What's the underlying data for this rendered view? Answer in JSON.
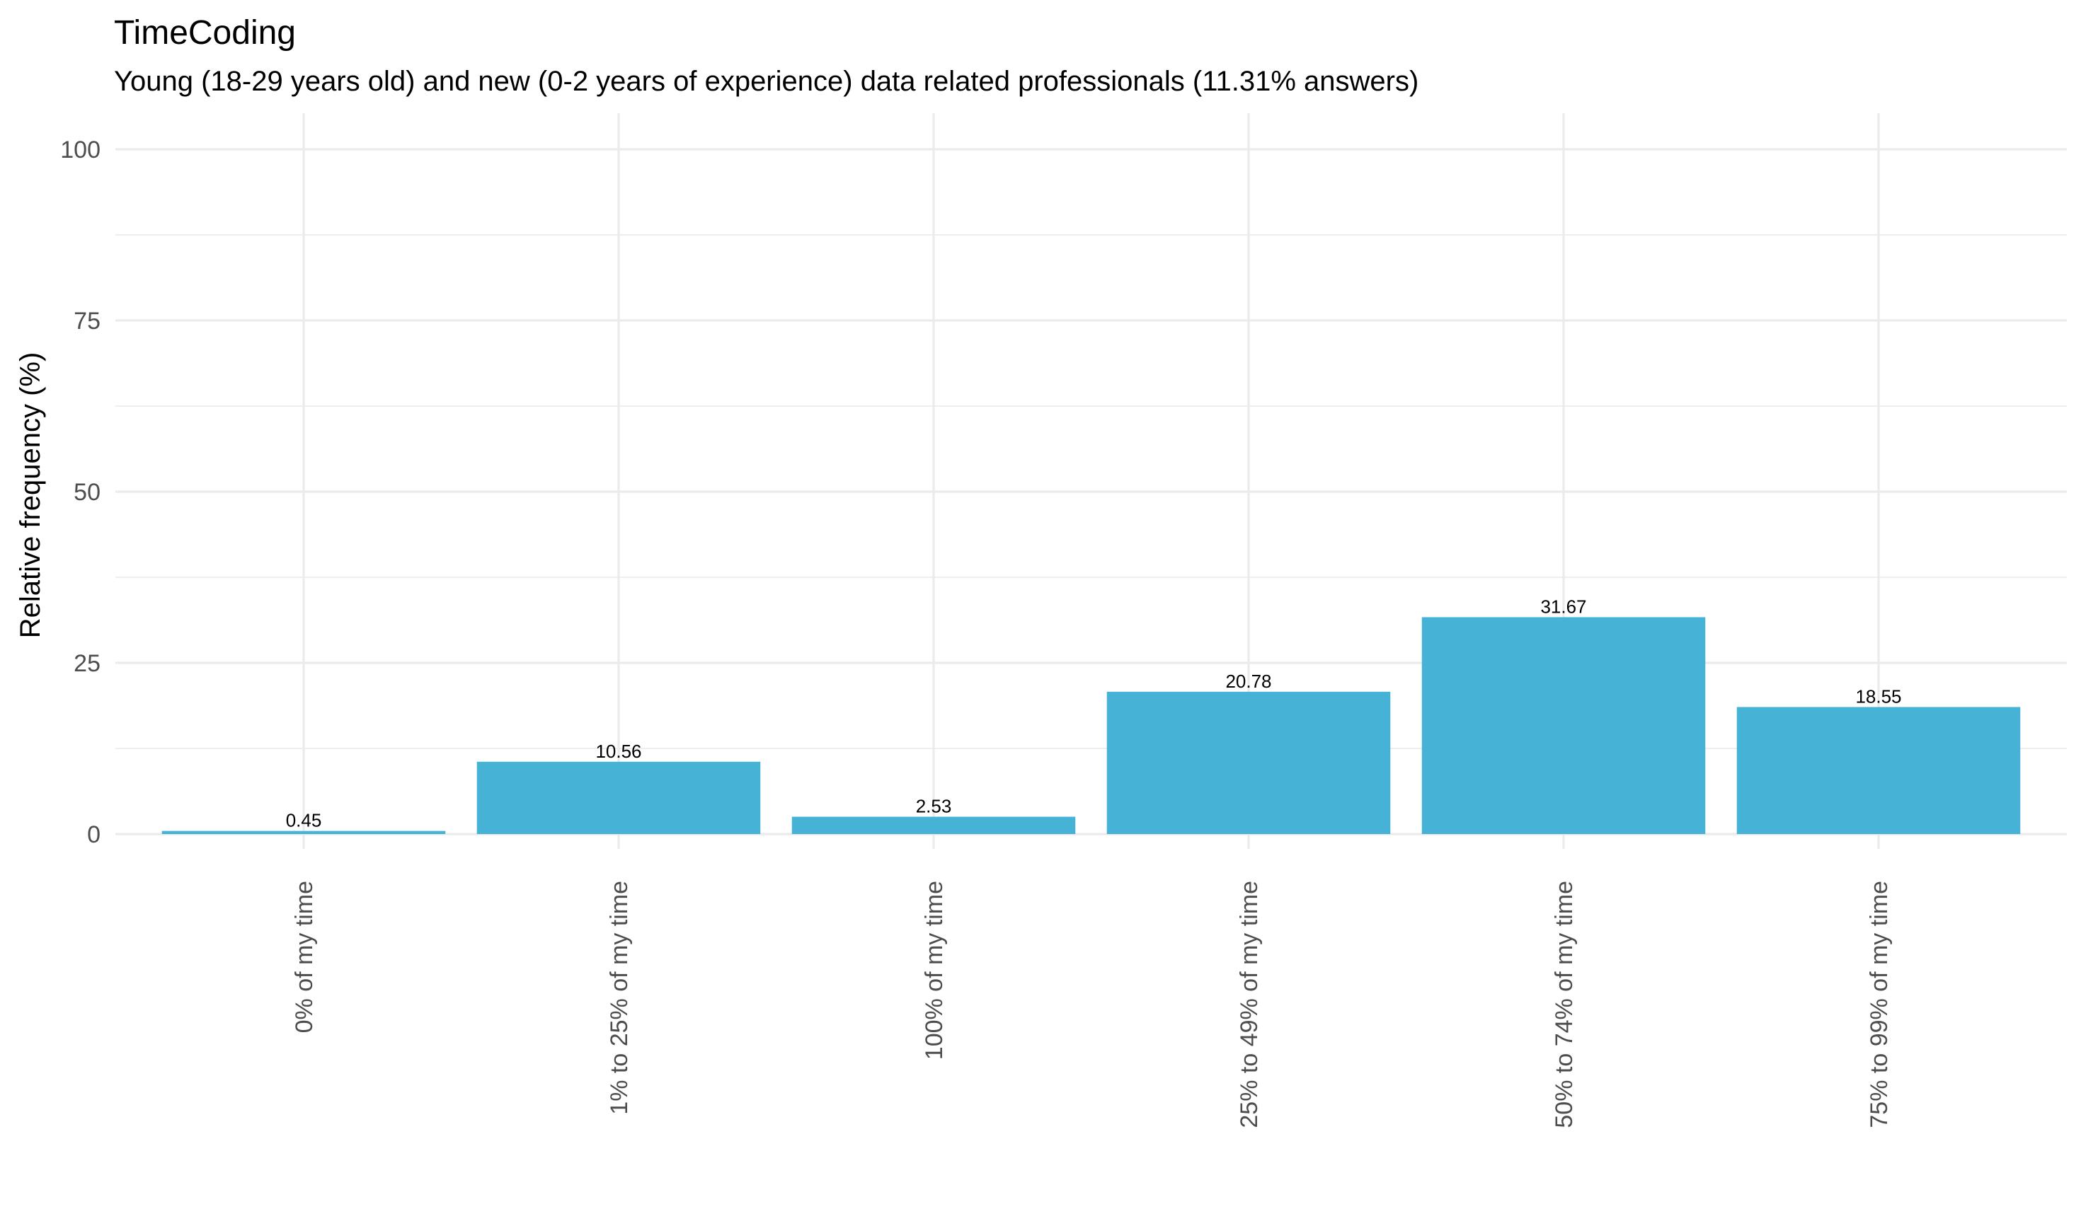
{
  "chart_data": {
    "type": "bar",
    "title": "TimeCoding",
    "subtitle": "Young (18-29 years old) and new (0-2 years of experience) data related professionals (11.31% answers)",
    "xlabel": "",
    "ylabel": "Relative frequency (%)",
    "categories": [
      "0% of my time",
      "1% to 25% of my time",
      "100% of my time",
      "25% to 49% of my time",
      "50% to 74% of my time",
      "75% to 99% of my time"
    ],
    "values": [
      0.45,
      10.56,
      2.53,
      20.78,
      31.67,
      18.55
    ],
    "data_labels": [
      "0.45",
      "10.56",
      "2.53",
      "20.78",
      "31.67",
      "18.55"
    ],
    "ylim": [
      0,
      100
    ],
    "yticks": [
      0,
      25,
      50,
      75,
      100
    ],
    "ytick_labels": [
      "0",
      "25",
      "50",
      "75",
      "100"
    ],
    "grid": true,
    "legend": "none",
    "bar_color": "#45B2D6"
  }
}
